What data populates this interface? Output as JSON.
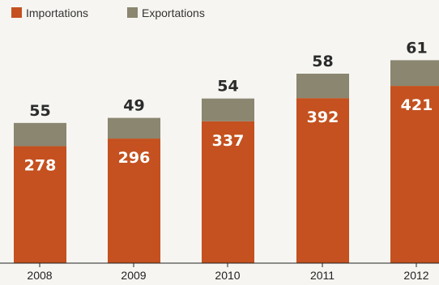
{
  "chart_data": {
    "type": "bar",
    "stacked": true,
    "categories": [
      "2008",
      "2009",
      "2010",
      "2011",
      "2012"
    ],
    "series": [
      {
        "name": "Importations",
        "values": [
          278,
          296,
          337,
          392,
          421
        ],
        "color": "#c4511f"
      },
      {
        "name": "Exportations",
        "values": [
          55,
          49,
          54,
          58,
          61
        ],
        "color": "#8a8670"
      }
    ],
    "legend_position": "top-left",
    "grid": false
  }
}
